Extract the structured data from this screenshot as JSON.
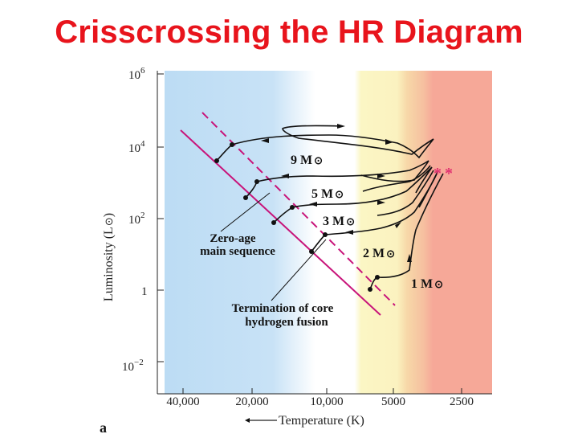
{
  "slide": {
    "title": "Crisscrossing the HR Diagram"
  },
  "diagram": {
    "y_axis_label": "Luminosity (L",
    "y_axis_label_close": ")",
    "x_axis_label": "Temperature (K)",
    "panel_label": "a",
    "y_ticks": [
      {
        "base": "10",
        "exp": "6"
      },
      {
        "base": "10",
        "exp": "4"
      },
      {
        "base": "10",
        "exp": "2"
      },
      {
        "base": "1",
        "exp": ""
      },
      {
        "base": "10",
        "exp": "−2"
      }
    ],
    "x_ticks": [
      "40,000",
      "20,000",
      "10,000",
      "5000",
      "2500"
    ],
    "tracks": [
      {
        "mass": "9 M",
        "sun": "⊙"
      },
      {
        "mass": "5 M",
        "sun": "⊙"
      },
      {
        "mass": "3 M",
        "sun": "⊙"
      },
      {
        "mass": "2 M",
        "sun": "⊙"
      },
      {
        "mass": "1 M",
        "sun": "⊙"
      }
    ],
    "annotations": {
      "zams": [
        "Zero-age",
        "main sequence"
      ],
      "termination": [
        "Termination of core",
        "hydrogen fusion"
      ]
    },
    "stars_marker": "**",
    "colors": {
      "title": "#e8141c",
      "zams_line": "#c8147a",
      "hot_band": "#bcdcf4",
      "yellow_band": "#fbf6c4",
      "orange_band": "#f7d8a8",
      "red_band": "#f6a898"
    }
  }
}
